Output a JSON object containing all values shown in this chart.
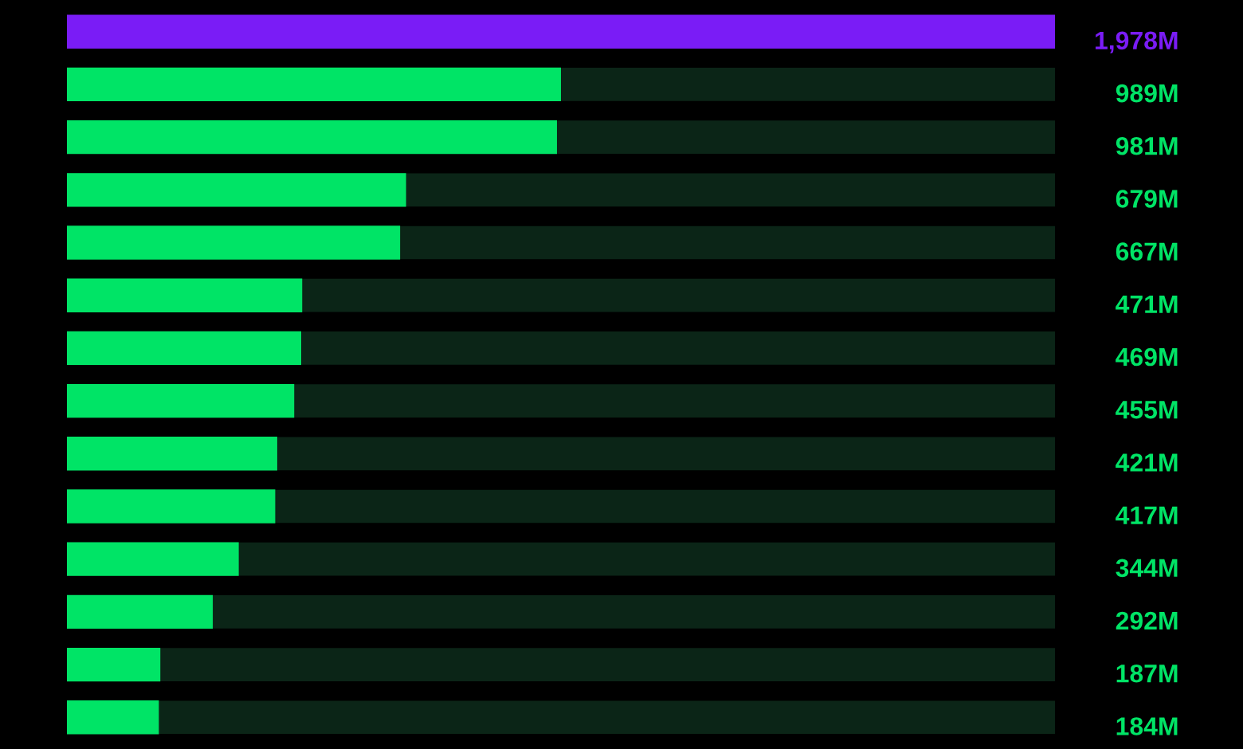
{
  "chart_data": {
    "type": "bar",
    "orientation": "horizontal",
    "categories": [
      null,
      null,
      null,
      null,
      null,
      null,
      null,
      null,
      null,
      null,
      null,
      null,
      null,
      null
    ],
    "values": [
      1978,
      989,
      981,
      679,
      667,
      471,
      469,
      455,
      421,
      417,
      344,
      292,
      187,
      184
    ],
    "value_labels": [
      "1,978M",
      "989M",
      "981M",
      "679M",
      "667M",
      "471M",
      "469M",
      "455M",
      "421M",
      "417M",
      "344M",
      "292M",
      "187M",
      "184M"
    ],
    "colors": [
      "#7a1cf6",
      "#00e466",
      "#00e466",
      "#00e466",
      "#00e466",
      "#00e466",
      "#00e466",
      "#00e466",
      "#00e466",
      "#00e466",
      "#00e466",
      "#00e466",
      "#00e466",
      "#00e466"
    ],
    "grid": "y"
  }
}
